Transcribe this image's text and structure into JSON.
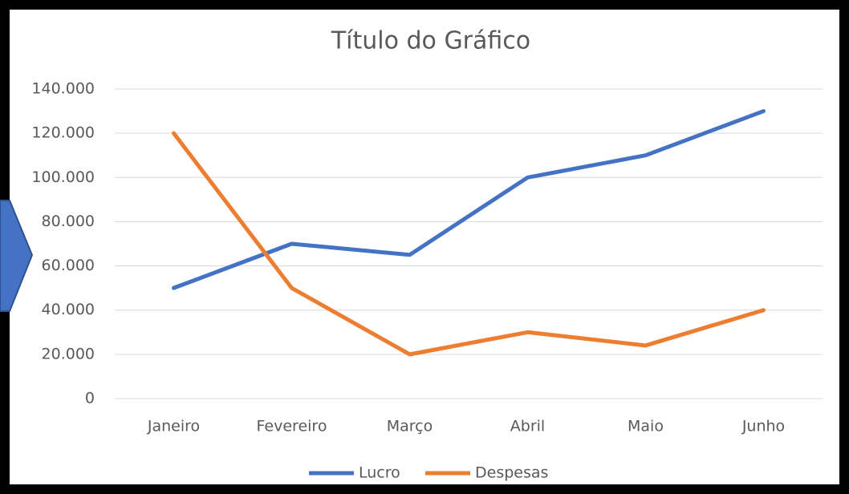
{
  "chart_data": {
    "type": "line",
    "title": "Título do Gráfico",
    "categories": [
      "Janeiro",
      "Fevereiro",
      "Março",
      "Abril",
      "Maio",
      "Junho"
    ],
    "series": [
      {
        "name": "Lucro",
        "color": "#4472c4",
        "values": [
          50000,
          70000,
          65000,
          100000,
          110000,
          130000
        ]
      },
      {
        "name": "Despesas",
        "color": "#ed7d31",
        "values": [
          120000,
          50000,
          20000,
          30000,
          24000,
          40000
        ]
      }
    ],
    "ylim": [
      0,
      140000
    ],
    "yticks": [
      0,
      {
        "value": 20000,
        "label": "20.000"
      },
      {
        "value": 40000,
        "label": "40.000"
      },
      {
        "value": 60000,
        "label": "60.000"
      },
      {
        "value": 80000,
        "label": "80.000"
      },
      {
        "value": 100000,
        "label": "100.000"
      },
      {
        "value": 120000,
        "label": "120.000"
      },
      {
        "value": 140000,
        "label": "140.000"
      }
    ],
    "grid": true,
    "legend": "bottom"
  }
}
